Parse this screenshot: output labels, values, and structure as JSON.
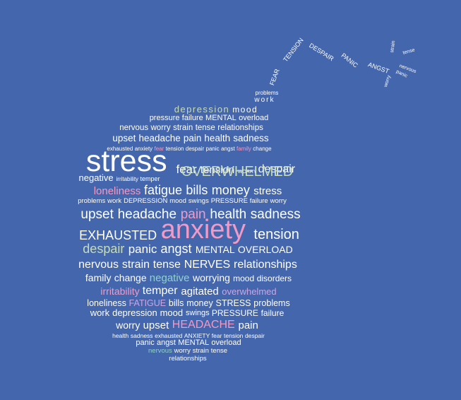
{
  "colors": {
    "background": "#4466ad",
    "white": "#ffffff",
    "pink": "#f29ac6",
    "green": "#9ed5ad",
    "sage": "#c7dcb8",
    "teal": "#8ed3c8",
    "lilac": "#c9a6e6"
  },
  "rows": [
    {
      "words": [
        {
          "t": "problems"
        }
      ]
    },
    {
      "words": [
        {
          "t": "work"
        }
      ]
    },
    {
      "words": [
        {
          "t": "depression",
          "c": "sage"
        },
        {
          "t": "mood"
        }
      ]
    },
    {
      "words": [
        {
          "t": "pressure"
        },
        {
          "t": "failure"
        },
        {
          "t": "MENTAL"
        },
        {
          "t": "overload"
        }
      ]
    },
    {
      "words": [
        {
          "t": "nervous"
        },
        {
          "t": "worry"
        },
        {
          "t": "strain"
        },
        {
          "t": "tense"
        },
        {
          "t": "relationships"
        }
      ]
    },
    {
      "words": [
        {
          "t": "upset"
        },
        {
          "t": "headache"
        },
        {
          "t": "pain"
        },
        {
          "t": "health"
        },
        {
          "t": "sadness"
        }
      ]
    },
    {
      "words": [
        {
          "t": "exhausted"
        },
        {
          "t": "anxiety"
        },
        {
          "t": "fear",
          "c": "pink"
        },
        {
          "t": "tension"
        },
        {
          "t": "despair"
        },
        {
          "t": "panic"
        },
        {
          "t": "angst"
        },
        {
          "t": "family",
          "c": "pink"
        },
        {
          "t": "change"
        }
      ]
    },
    {
      "words": [
        {
          "t": "stress"
        },
        {
          "t": "fear"
        },
        {
          "t": "tension"
        },
        {
          "t": "WORRY"
        },
        {
          "t": "despair"
        }
      ]
    },
    {
      "words": [
        {
          "t": "OVERWHELMED",
          "c": "sage"
        }
      ]
    },
    {
      "words": [
        {
          "t": "negative"
        },
        {
          "t": "irritability"
        },
        {
          "t": "temper"
        }
      ]
    },
    {
      "words": [
        {
          "t": "loneliness",
          "c": "pink"
        },
        {
          "t": "fatigue"
        },
        {
          "t": "bills"
        },
        {
          "t": "money"
        },
        {
          "t": "stress"
        }
      ]
    },
    {
      "words": [
        {
          "t": "problems"
        },
        {
          "t": "work"
        },
        {
          "t": "DEPRESSION"
        },
        {
          "t": "mood"
        },
        {
          "t": "swings"
        },
        {
          "t": "PRESSURE"
        },
        {
          "t": "failure"
        },
        {
          "t": "worry"
        }
      ]
    },
    {
      "words": [
        {
          "t": "upset"
        },
        {
          "t": "headache"
        },
        {
          "t": "pain",
          "c": "pink"
        },
        {
          "t": "health"
        },
        {
          "t": "sadness"
        }
      ]
    },
    {
      "words": [
        {
          "t": "EXHAUSTED"
        },
        {
          "t": "anxiety",
          "c": "pink"
        },
        {
          "t": "tension"
        }
      ]
    },
    {
      "words": [
        {
          "t": "despair",
          "c": "sage"
        },
        {
          "t": "panic"
        },
        {
          "t": "angst"
        },
        {
          "t": "MENTAL"
        },
        {
          "t": "OVERLOAD"
        }
      ]
    },
    {
      "words": [
        {
          "t": "nervous"
        },
        {
          "t": "strain"
        },
        {
          "t": "tense"
        },
        {
          "t": "NERVES"
        },
        {
          "t": "relationships"
        }
      ]
    },
    {
      "words": [
        {
          "t": "family"
        },
        {
          "t": "change"
        },
        {
          "t": "negative",
          "c": "teal"
        },
        {
          "t": "worrying"
        },
        {
          "t": "mood"
        },
        {
          "t": "disorders"
        }
      ]
    },
    {
      "words": [
        {
          "t": "irritability",
          "c": "pink"
        },
        {
          "t": "temper"
        },
        {
          "t": "agitated"
        },
        {
          "t": "overwhelmed",
          "c": "lilac"
        }
      ]
    },
    {
      "words": [
        {
          "t": "loneliness"
        },
        {
          "t": "FATIGUE",
          "c": "lilac"
        },
        {
          "t": "bills"
        },
        {
          "t": "money"
        },
        {
          "t": "STRESS"
        },
        {
          "t": "problems"
        }
      ]
    },
    {
      "words": [
        {
          "t": "work"
        },
        {
          "t": "depression"
        },
        {
          "t": "mood"
        },
        {
          "t": "swings"
        },
        {
          "t": "PRESSURE"
        },
        {
          "t": "failure"
        }
      ]
    },
    {
      "words": [
        {
          "t": "worry"
        },
        {
          "t": "upset"
        },
        {
          "t": "HEADACHE",
          "c": "pink"
        },
        {
          "t": "pain"
        }
      ]
    },
    {
      "words": [
        {
          "t": "health"
        },
        {
          "t": "sadness"
        },
        {
          "t": "exhausted"
        },
        {
          "t": "ANXIETY"
        },
        {
          "t": "fear"
        },
        {
          "t": "tension"
        },
        {
          "t": "despair"
        }
      ]
    },
    {
      "words": [
        {
          "t": "panic"
        },
        {
          "t": "angst"
        },
        {
          "t": "MENTAL"
        },
        {
          "t": "overload"
        }
      ]
    },
    {
      "words": [
        {
          "t": "nervous",
          "c": "teal"
        },
        {
          "t": "worry"
        },
        {
          "t": "strain"
        },
        {
          "t": "tense"
        }
      ]
    },
    {
      "words": [
        {
          "t": "relationships"
        }
      ]
    }
  ],
  "fuse": [
    {
      "t": "FEAR"
    },
    {
      "t": "TENSION"
    },
    {
      "t": "DESPAIR"
    },
    {
      "t": "PANIC"
    },
    {
      "t": "ANGST"
    },
    {
      "t": "worry"
    },
    {
      "t": "panic"
    },
    {
      "t": "strain"
    },
    {
      "t": "tense"
    },
    {
      "t": "nervous"
    }
  ]
}
